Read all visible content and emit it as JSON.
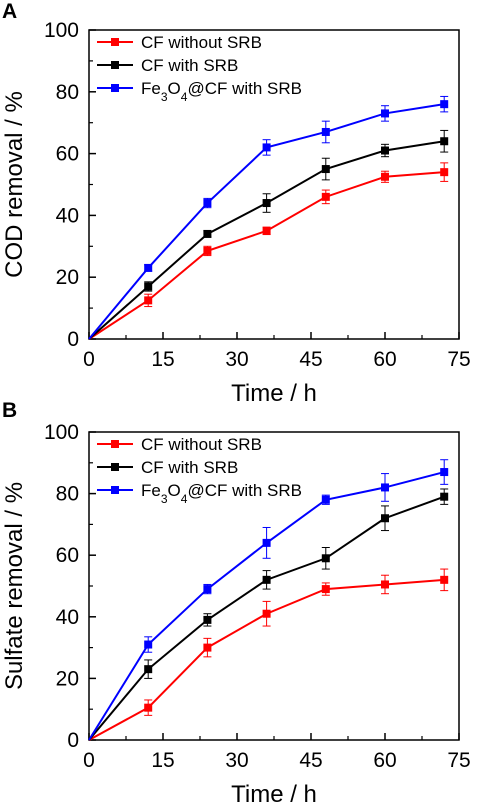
{
  "chart_data": [
    {
      "type": "line",
      "panel_label": "A",
      "xlabel": "Time / h",
      "ylabel": "COD removal / %",
      "xlim": [
        0,
        75
      ],
      "ylim": [
        0,
        100
      ],
      "xticks": [
        "0",
        "15",
        "30",
        "45",
        "60",
        "75"
      ],
      "yticks": [
        "0",
        "20",
        "40",
        "60",
        "80",
        "100"
      ],
      "legend_position": "top-left",
      "grid": false,
      "x": [
        0,
        12,
        24,
        36,
        48,
        60,
        72
      ],
      "series": [
        {
          "name": "CF without SRB",
          "legend": {
            "pre": "CF without SRB",
            "sub": "",
            "post": ""
          },
          "color": "#ff0000",
          "values": [
            0,
            12.5,
            28.5,
            35,
            46,
            52.5,
            54
          ],
          "errors": [
            0,
            2,
            1.5,
            1.2,
            2.2,
            1.8,
            3
          ]
        },
        {
          "name": "CF with SRB",
          "legend": {
            "pre": "CF with SRB",
            "sub": "",
            "post": ""
          },
          "color": "#000000",
          "values": [
            0,
            17,
            34,
            44,
            55,
            61,
            64
          ],
          "errors": [
            0,
            1.5,
            1,
            3,
            3.5,
            2,
            3.5
          ]
        },
        {
          "name": "Fe3O4@CF with SRB",
          "legend": {
            "pre": "Fe",
            "sub": "3",
            "post": "O",
            "sub2": "4",
            "post2": "@CF with SRB"
          },
          "color": "#0000ff",
          "values": [
            0,
            23,
            44,
            62,
            67,
            73,
            76
          ],
          "errors": [
            0,
            1,
            1.5,
            2.5,
            3.5,
            2.5,
            2.5
          ]
        }
      ]
    },
    {
      "type": "line",
      "panel_label": "B",
      "xlabel": "Time / h",
      "ylabel": "Sulfate removal / %",
      "xlim": [
        0,
        75
      ],
      "ylim": [
        0,
        100
      ],
      "xticks": [
        "0",
        "15",
        "30",
        "45",
        "60",
        "75"
      ],
      "yticks": [
        "0",
        "20",
        "40",
        "60",
        "80",
        "100"
      ],
      "legend_position": "top-left",
      "grid": false,
      "x": [
        0,
        12,
        24,
        36,
        48,
        60,
        72
      ],
      "series": [
        {
          "name": "CF without SRB",
          "legend": {
            "pre": "CF without SRB",
            "sub": "",
            "post": ""
          },
          "color": "#ff0000",
          "values": [
            0,
            10.5,
            30,
            41,
            49,
            50.5,
            52
          ],
          "errors": [
            0,
            2.5,
            3,
            4,
            2,
            3,
            3.5
          ]
        },
        {
          "name": "CF with SRB",
          "legend": {
            "pre": "CF with SRB",
            "sub": "",
            "post": ""
          },
          "color": "#000000",
          "values": [
            0,
            23,
            39,
            52,
            59,
            72,
            79
          ],
          "errors": [
            0,
            3,
            2,
            3,
            3.5,
            4,
            2.5
          ]
        },
        {
          "name": "Fe3O4@CF with SRB",
          "legend": {
            "pre": "Fe",
            "sub": "3",
            "post": "O",
            "sub2": "4",
            "post2": "@CF with SRB"
          },
          "color": "#0000ff",
          "values": [
            0,
            31,
            49,
            64,
            78,
            82,
            87
          ],
          "errors": [
            0,
            2.5,
            1.5,
            5,
            1.5,
            4.5,
            4
          ]
        }
      ]
    }
  ]
}
